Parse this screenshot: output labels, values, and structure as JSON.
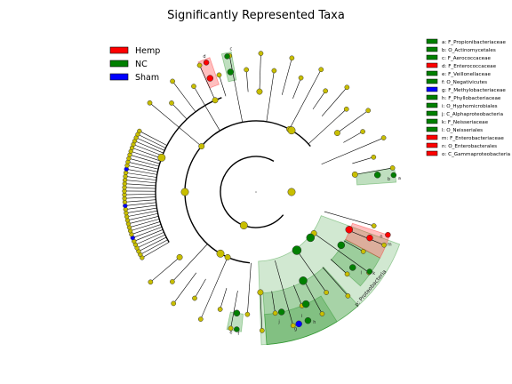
{
  "title": "Significantly Represented Taxa",
  "colors": {
    "Hemp": "#ff0000",
    "NC": "#008000",
    "Sham": "#0000ff",
    "neutral": "#c8be00"
  },
  "group_legend": [
    {
      "label": "Hemp",
      "group": "Hemp"
    },
    {
      "label": "NC",
      "group": "NC"
    },
    {
      "label": "Sham",
      "group": "Sham"
    }
  ],
  "taxa_legend": [
    {
      "key": "a",
      "label": "a: F_Propionibacteriaceae",
      "group": "NC"
    },
    {
      "key": "b",
      "label": "b: O_Actinomycetales",
      "group": "NC"
    },
    {
      "key": "c",
      "label": "c: F_Aerococcaceae",
      "group": "NC"
    },
    {
      "key": "d",
      "label": "d: F_Enterococcaceae",
      "group": "Hemp"
    },
    {
      "key": "e",
      "label": "e: F_Veillonellaceae",
      "group": "NC"
    },
    {
      "key": "f",
      "label": "f: O_Negativicutes",
      "group": "NC"
    },
    {
      "key": "g",
      "label": "g: F_Methylobacteriaceae",
      "group": "Sham"
    },
    {
      "key": "h",
      "label": "h: F_Phyllobacteriaceae",
      "group": "NC"
    },
    {
      "key": "i",
      "label": "i: O_Hyphomicrobiales",
      "group": "NC"
    },
    {
      "key": "j",
      "label": "j: C_Alphaproteobacteria",
      "group": "NC"
    },
    {
      "key": "k",
      "label": "k: F_Neisseriaceae",
      "group": "NC"
    },
    {
      "key": "l",
      "label": "l: O_Neisseriales",
      "group": "NC"
    },
    {
      "key": "m",
      "label": "m: F_Enterobacteriaceae",
      "group": "Hemp"
    },
    {
      "key": "n",
      "label": "n: O_Enterobacterales",
      "group": "Hemp"
    },
    {
      "key": "o",
      "label": "o: C_Gammaproteobacteria",
      "group": "Hemp"
    }
  ],
  "clade_labels": {
    "phylum": "p: Proteobacteria"
  }
}
